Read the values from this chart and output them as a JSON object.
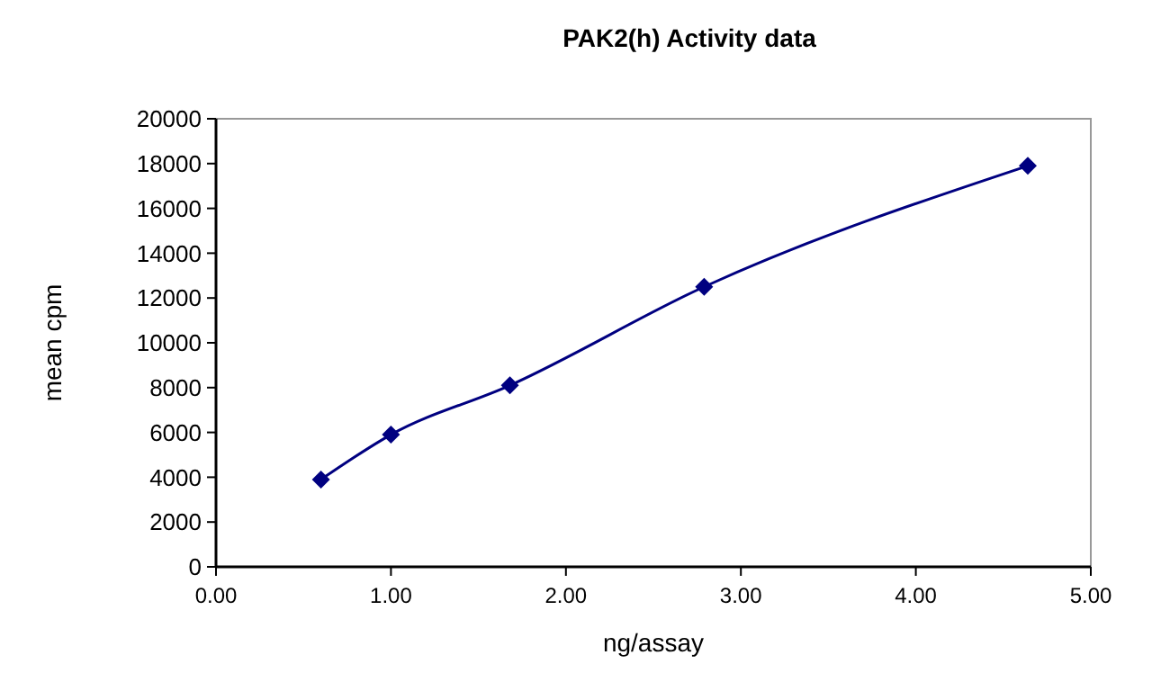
{
  "chart_data": {
    "type": "line",
    "title": "PAK2(h) Activity data",
    "xlabel": "ng/assay",
    "ylabel": "mean cpm",
    "x": [
      0.6,
      1.0,
      1.68,
      2.79,
      4.64
    ],
    "series": [
      {
        "color": "#000080",
        "values": [
          3900,
          5900,
          8100,
          12500,
          17900
        ]
      }
    ],
    "xlim": [
      0,
      5
    ],
    "xticks": [
      {
        "value": 0,
        "label": "0.00"
      },
      {
        "value": 1,
        "label": "1.00"
      },
      {
        "value": 2,
        "label": "2.00"
      },
      {
        "value": 3,
        "label": "3.00"
      },
      {
        "value": 4,
        "label": "4.00"
      },
      {
        "value": 5,
        "label": "5.00"
      }
    ],
    "ylim": [
      0,
      20000
    ],
    "yticks": [
      0,
      2000,
      4000,
      6000,
      8000,
      10000,
      12000,
      14000,
      16000,
      18000,
      20000
    ],
    "grid": false,
    "marker": "diamond",
    "line_style": "solid"
  }
}
